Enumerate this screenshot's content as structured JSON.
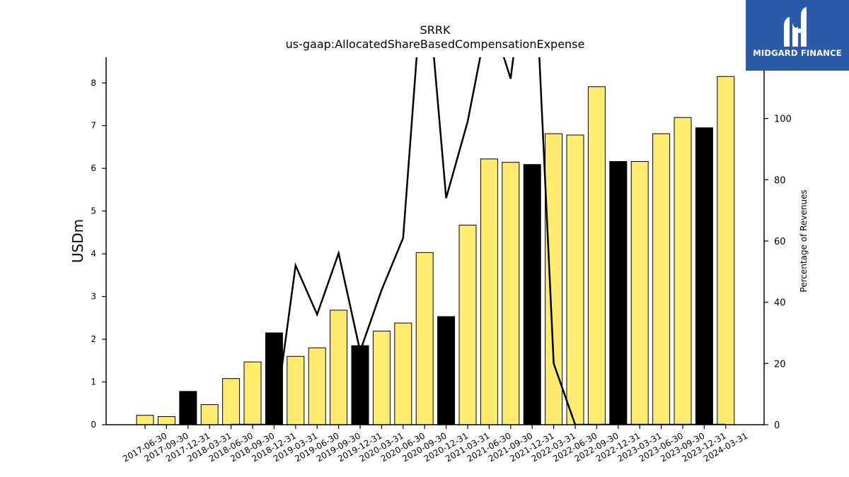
{
  "brand": {
    "name": "MIDGARD FINANCE",
    "color": "#2b5aa8"
  },
  "colors": {
    "bar_regular": "#ffec6e",
    "bar_q4": "#000000",
    "line": "#000000"
  },
  "chart_data": {
    "type": "bar",
    "title": "SRRK",
    "subtitle": "us-gaap:AllocatedShareBasedCompensationExpense",
    "ylabel": "USDm",
    "y2label": "Percentage of Revenues",
    "ylim": [
      0,
      8.6
    ],
    "y2lim": [
      0,
      120
    ],
    "yticks": [
      0,
      1,
      2,
      3,
      4,
      5,
      6,
      7,
      8
    ],
    "y2ticks": [
      0,
      20,
      40,
      60,
      80,
      100
    ],
    "categories": [
      "2017-06-30",
      "2017-09-30",
      "2017-12-31",
      "2018-03-31",
      "2018-06-30",
      "2018-09-30",
      "2018-12-31",
      "2019-03-31",
      "2019-06-30",
      "2019-09-30",
      "2019-12-31",
      "2020-03-31",
      "2020-06-30",
      "2020-09-30",
      "2020-12-31",
      "2021-03-31",
      "2021-06-30",
      "2021-09-30",
      "2021-12-31",
      "2022-03-31",
      "2022-06-30",
      "2022-09-30",
      "2022-12-31",
      "2023-03-31",
      "2023-06-30",
      "2023-09-30",
      "2023-12-31",
      "2024-03-31"
    ],
    "series": [
      {
        "type": "bar",
        "axis": "left",
        "values": [
          0.22,
          0.19,
          0.78,
          0.47,
          1.08,
          1.47,
          2.15,
          1.6,
          1.8,
          2.68,
          1.85,
          2.19,
          2.38,
          4.03,
          2.53,
          4.67,
          6.22,
          6.14,
          6.09,
          6.81,
          6.78,
          7.91,
          6.16,
          6.16,
          6.81,
          7.19,
          6.95,
          8.15
        ],
        "highlight_fourth_quarter": true
      },
      {
        "type": "line",
        "axis": "right",
        "values": [
          null,
          null,
          null,
          null,
          0,
          0,
          0,
          52,
          36,
          56,
          24,
          44,
          61,
          155,
          74,
          99,
          135,
          113,
          170,
          20,
          0,
          0,
          0,
          0,
          0,
          0,
          0,
          0
        ]
      }
    ],
    "grid": false,
    "legend": "none"
  }
}
